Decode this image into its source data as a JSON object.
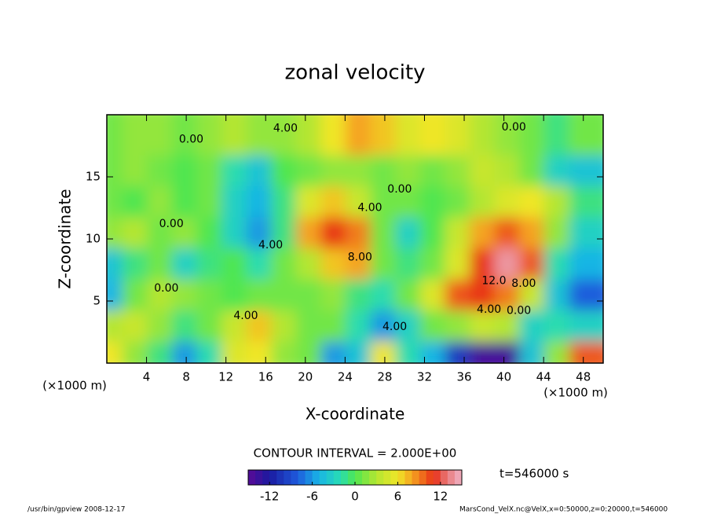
{
  "chart_data": {
    "type": "contour",
    "title": "zonal velocity",
    "x_label": "X-coordinate",
    "y_label": "Z-coordinate",
    "x_unit": "(×1000 m)",
    "y_unit": "(×1000 m)",
    "x": [
      1.25,
      3.75,
      6.25,
      8.75,
      11.25,
      13.75,
      16.25,
      18.75,
      21.25,
      23.75,
      26.25,
      28.75,
      31.25,
      33.75,
      36.25,
      38.75,
      41.25,
      43.75,
      46.25,
      48.75
    ],
    "z": [
      1.25,
      3.75,
      6.25,
      8.75,
      11.25,
      13.75,
      16.25,
      18.75
    ],
    "values": [
      [
        6,
        2,
        -1,
        -6,
        -2,
        5,
        6,
        2,
        1,
        -6,
        -4,
        6,
        -2,
        -5,
        -10,
        -14,
        -14,
        -4,
        2,
        10
      ],
      [
        3,
        4,
        2,
        -1,
        1,
        4,
        7,
        3,
        1,
        1,
        -2,
        -6,
        -3,
        1,
        2,
        4,
        3,
        -3,
        -2,
        -3
      ],
      [
        -5,
        1,
        3,
        2,
        1,
        0,
        1,
        1,
        1,
        2,
        -1,
        -2,
        1,
        5,
        10,
        11,
        9,
        4,
        -4,
        -8
      ],
      [
        -4,
        -1,
        1,
        -3,
        -1,
        0,
        -2,
        1,
        3,
        7,
        8,
        1,
        -1,
        1,
        5,
        11,
        14,
        10,
        -2,
        -5
      ],
      [
        2,
        3,
        1,
        2,
        0,
        -3,
        -6,
        -1,
        8,
        11,
        9,
        1,
        -3,
        0,
        4,
        8,
        10,
        8,
        2,
        -3
      ],
      [
        1,
        0,
        2,
        0,
        1,
        -3,
        -5,
        -1,
        5,
        7,
        4,
        1,
        1,
        0,
        1,
        3,
        5,
        6,
        3,
        -1
      ],
      [
        1,
        2,
        1,
        0,
        1,
        -2,
        -4,
        0,
        1,
        2,
        2,
        1,
        2,
        1,
        2,
        4,
        3,
        1,
        -3,
        -4
      ],
      [
        1,
        2,
        2,
        1,
        2,
        3,
        2,
        2,
        3,
        6,
        8,
        7,
        5,
        6,
        5,
        3,
        2,
        1,
        -1,
        1
      ]
    ],
    "xlim": [
      0,
      50
    ],
    "ylim": [
      0,
      20
    ],
    "xticks": [
      4,
      8,
      12,
      16,
      20,
      24,
      28,
      32,
      36,
      40,
      44,
      48
    ],
    "yticks": [
      5,
      10,
      15
    ],
    "clim": [
      -15,
      15
    ],
    "colorbar_ticks": [
      -12,
      -6,
      0,
      6,
      12
    ],
    "contour_labels": [
      {
        "text": "4.00",
        "x": 18,
        "z": 18.9
      },
      {
        "text": "0.00",
        "x": 8.5,
        "z": 18
      },
      {
        "text": "0.00",
        "x": 41,
        "z": 19
      },
      {
        "text": "0.00",
        "x": 29.5,
        "z": 14
      },
      {
        "text": "4.00",
        "x": 26.5,
        "z": 12.5
      },
      {
        "text": "0.00",
        "x": 6.5,
        "z": 11.2
      },
      {
        "text": "4.00",
        "x": 16.5,
        "z": 9.5
      },
      {
        "text": "8.00",
        "x": 25.5,
        "z": 8.5
      },
      {
        "text": "0.00",
        "x": 6,
        "z": 6
      },
      {
        "text": "4.00",
        "x": 14,
        "z": 3.8
      },
      {
        "text": "12.0",
        "x": 39,
        "z": 6.6
      },
      {
        "text": "8.00",
        "x": 42,
        "z": 6.4
      },
      {
        "text": "4.00",
        "x": 38.5,
        "z": 4.3
      },
      {
        "text": "0.00",
        "x": 41.5,
        "z": 4.2
      },
      {
        "text": "4.00",
        "x": 29,
        "z": 2.9
      }
    ],
    "contour_interval_text": "CONTOUR INTERVAL = 2.000E+00",
    "time_text": "t=546000 s",
    "footer_left": "/usr/bin/gpview  2008-12-17",
    "footer_right": "MarsCond_VelX.nc@VelX,x=0:50000,z=0:20000,t=546000"
  }
}
